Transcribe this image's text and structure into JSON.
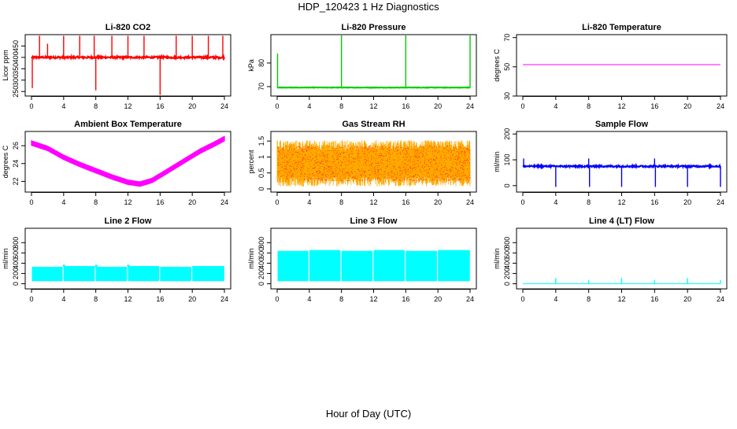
{
  "figure": {
    "title": "HDP_120423  1 Hz Diagnostics",
    "xlabel": "Hour of Day (UTC)"
  },
  "chart_data": [
    {
      "title": "Li-820 CO2",
      "type": "line",
      "ylabel": "Licor ppm",
      "color": "#ff0000",
      "xlim": [
        0,
        24
      ],
      "xticks": [
        0,
        4,
        8,
        12,
        16,
        20,
        24
      ],
      "ylim": [
        230,
        500
      ],
      "yticks": [
        250,
        300,
        350,
        400,
        450
      ],
      "baseline": 400,
      "noise": 4,
      "spikes": [
        {
          "x": 1.0,
          "y": 495
        },
        {
          "x": 2.0,
          "y": 460
        },
        {
          "x": 4.0,
          "y": 495
        },
        {
          "x": 6.0,
          "y": 495
        },
        {
          "x": 7.8,
          "y": 495
        },
        {
          "x": 8.0,
          "y": 255
        },
        {
          "x": 10.0,
          "y": 495
        },
        {
          "x": 12.0,
          "y": 495
        },
        {
          "x": 14.0,
          "y": 495
        },
        {
          "x": 16.0,
          "y": 235
        },
        {
          "x": 18.0,
          "y": 495
        },
        {
          "x": 20.0,
          "y": 495
        },
        {
          "x": 22.0,
          "y": 495
        },
        {
          "x": 23.8,
          "y": 495
        },
        {
          "x": 0.1,
          "y": 265
        }
      ]
    },
    {
      "title": "Li-820 Pressure",
      "type": "line",
      "ylabel": "kPa",
      "color": "#00cc00",
      "xlim": [
        0,
        24
      ],
      "xticks": [
        0,
        4,
        8,
        12,
        16,
        20,
        24
      ],
      "ylim": [
        66,
        92
      ],
      "yticks": [
        70,
        80
      ],
      "baseline": 69.6,
      "noise": 0.1,
      "spikes": [
        {
          "x": 0.05,
          "y": 84
        },
        {
          "x": 8.0,
          "y": 92
        },
        {
          "x": 16.0,
          "y": 92
        },
        {
          "x": 24.0,
          "y": 92
        }
      ]
    },
    {
      "title": "Li-820 Temperature",
      "type": "line",
      "ylabel": "degrees C",
      "color": "#ff00ff",
      "xlim": [
        0,
        24
      ],
      "xticks": [
        0,
        4,
        8,
        12,
        16,
        20,
        24
      ],
      "ylim": [
        30,
        72
      ],
      "yticks": [
        30,
        50,
        70
      ],
      "baseline": 51.5,
      "noise": 0,
      "spikes": []
    },
    {
      "title": "Ambient Box Temperature",
      "type": "line",
      "ylabel": "degrees C",
      "color": "#ff00ff",
      "xlim": [
        0,
        24
      ],
      "xticks": [
        0,
        4,
        8,
        12,
        16,
        20,
        24
      ],
      "ylim": [
        20.8,
        27.6
      ],
      "yticks": [
        22,
        24,
        26
      ],
      "x": [
        0,
        2,
        4,
        6,
        8,
        10,
        12,
        13.5,
        15,
        17,
        19,
        21,
        23,
        24
      ],
      "y": [
        26.3,
        25.7,
        24.7,
        23.9,
        23.2,
        22.5,
        21.9,
        21.7,
        22.1,
        23.2,
        24.3,
        25.4,
        26.3,
        26.8
      ],
      "band": 0.6
    },
    {
      "title": "Gas Stream RH",
      "type": "line",
      "ylabel": "percent",
      "color": "#ff0000",
      "xlim": [
        0,
        24
      ],
      "xticks": [
        0,
        4,
        8,
        12,
        16,
        20,
        24
      ],
      "ylim": [
        -0.1,
        1.8
      ],
      "yticks": [
        0.0,
        0.5,
        1.0,
        1.5
      ],
      "low": 0.25,
      "high": 1.35,
      "band_color": "#ffaa00"
    },
    {
      "title": "Sample Flow",
      "type": "line",
      "ylabel": "ml/min",
      "color": "#0000ff",
      "xlim": [
        0,
        24
      ],
      "xticks": [
        0,
        4,
        8,
        12,
        16,
        20,
        24
      ],
      "ylim": [
        -25,
        210
      ],
      "yticks": [
        0,
        100,
        200
      ],
      "baseline": 75,
      "noise": 3,
      "spikes": [
        {
          "x": 0.1,
          "y": 105
        },
        {
          "x": 4.0,
          "y": -5
        },
        {
          "x": 8.0,
          "y": 105
        },
        {
          "x": 8.1,
          "y": -5
        },
        {
          "x": 12.0,
          "y": -5
        },
        {
          "x": 16.0,
          "y": 105
        },
        {
          "x": 16.1,
          "y": -5
        },
        {
          "x": 20.0,
          "y": -5
        },
        {
          "x": 24.0,
          "y": -5
        }
      ]
    },
    {
      "title": "Line 2 Flow",
      "type": "line",
      "ylabel": "ml/min",
      "color": "#00ffff",
      "xlim": [
        0,
        24
      ],
      "xticks": [
        0,
        4,
        8,
        12,
        16,
        20,
        24
      ],
      "ylim": [
        -100,
        1080
      ],
      "yticks": [
        0,
        200,
        400,
        600,
        800
      ],
      "low": 50,
      "high": 330,
      "gaps": [
        3.9,
        7.9,
        11.9,
        15.9,
        19.9
      ],
      "ragged": [
        4.0,
        8.0,
        12.0
      ]
    },
    {
      "title": "Line 3 Flow",
      "type": "line",
      "ylabel": "ml/min",
      "color": "#00ffff",
      "xlim": [
        0,
        24
      ],
      "xticks": [
        0,
        4,
        8,
        12,
        16,
        20,
        24
      ],
      "ylim": [
        -100,
        1080
      ],
      "yticks": [
        0,
        200,
        400,
        600,
        800
      ],
      "low": 50,
      "high": 640,
      "gaps": [
        3.9,
        7.9,
        11.9,
        15.9,
        19.9
      ],
      "ragged": []
    },
    {
      "title": "Line 4 (LT) Flow",
      "type": "line",
      "ylabel": "ml/min",
      "color": "#00ffff",
      "xlim": [
        0,
        24
      ],
      "xticks": [
        0,
        4,
        8,
        12,
        16,
        20,
        24
      ],
      "ylim": [
        -100,
        1080
      ],
      "yticks": [
        0,
        200,
        400,
        600,
        800
      ],
      "baseline": 0,
      "noise": 0,
      "spikes": [
        {
          "x": 4.0,
          "y": 110
        },
        {
          "x": 8.0,
          "y": 70
        },
        {
          "x": 12.0,
          "y": 110
        },
        {
          "x": 16.0,
          "y": 70
        },
        {
          "x": 20.0,
          "y": 110
        },
        {
          "x": 24.0,
          "y": 70
        }
      ]
    }
  ]
}
